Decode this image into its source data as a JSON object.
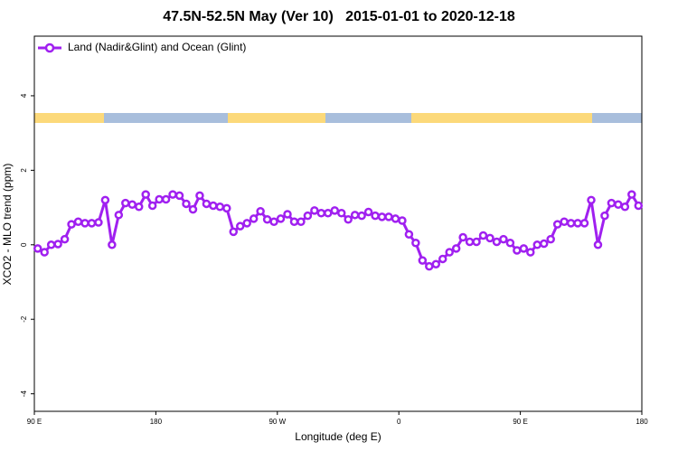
{
  "chart_data": {
    "type": "line",
    "title": "47.5N-52.5N May (Ver 10)   2015-01-01 to 2020-12-18",
    "x_label": "Longitude (deg E)",
    "y_label": "XCO2 - MLO trend (ppm)",
    "x": [
      92.5,
      97.5,
      102.5,
      107.5,
      112.5,
      117.5,
      122.5,
      127.5,
      132.5,
      137.5,
      142.5,
      147.5,
      152.5,
      157.5,
      162.5,
      167.5,
      172.5,
      177.5,
      182.5,
      187.5,
      192.5,
      197.5,
      202.5,
      207.5,
      212.5,
      217.5,
      222.5,
      227.5,
      232.5,
      237.5,
      242.5,
      247.5,
      252.5,
      257.5,
      262.5,
      267.5,
      272.5,
      277.5,
      282.5,
      287.5,
      292.5,
      297.5,
      302.5,
      307.5,
      312.5,
      317.5,
      322.5,
      327.5,
      332.5,
      337.5,
      342.5,
      347.5,
      352.5,
      357.5,
      362.5,
      367.5,
      372.5,
      377.5,
      382.5,
      387.5,
      392.5,
      397.5,
      402.5,
      407.5,
      412.5,
      417.5,
      422.5,
      427.5,
      432.5,
      437.5,
      442.5,
      447.5,
      452.5,
      457.5,
      462.5,
      467.5,
      472.5,
      477.5,
      482.5,
      487.5,
      492.5,
      497.5,
      502.5,
      507.5,
      512.5,
      517.5,
      522.5,
      527.5,
      532.5,
      537.5
    ],
    "series": [
      {
        "name": "Land (Nadir&Glint) and Ocean (Glint)",
        "color": "#a020f0",
        "values": [
          -0.1,
          -0.2,
          0.0,
          0.02,
          0.15,
          0.55,
          0.62,
          0.58,
          0.58,
          0.6,
          1.2,
          0.0,
          0.8,
          1.12,
          1.08,
          1.02,
          1.35,
          1.05,
          1.22,
          1.22,
          1.35,
          1.32,
          1.1,
          0.95,
          1.32,
          1.1,
          1.05,
          1.02,
          0.98,
          0.35,
          0.5,
          0.58,
          0.7,
          0.9,
          0.68,
          0.62,
          0.7,
          0.82,
          0.62,
          0.62,
          0.78,
          0.92,
          0.85,
          0.85,
          0.92,
          0.85,
          0.68,
          0.8,
          0.78,
          0.88,
          0.78,
          0.75,
          0.75,
          0.7,
          0.65,
          0.28,
          0.05,
          -0.42,
          -0.58,
          -0.52,
          -0.38,
          -0.2,
          -0.1,
          0.2,
          0.08,
          0.08,
          0.25,
          0.18,
          0.08,
          0.15,
          0.05,
          -0.15,
          -0.1,
          -0.2,
          0.0,
          0.03,
          0.15,
          0.55,
          0.62,
          0.58,
          0.58,
          0.58,
          1.2,
          0.0,
          0.78,
          1.12,
          1.08,
          1.02,
          1.35,
          1.05
        ]
      }
    ],
    "xlim": [
      90,
      540
    ],
    "xticks": [
      {
        "value": 90,
        "label": "90 E"
      },
      180,
      {
        "value": 270,
        "label": "90 W"
      },
      {
        "value": 360,
        "label": "0"
      },
      {
        "value": 450,
        "label": "90 E"
      },
      {
        "value": 540,
        "label": "180"
      }
    ],
    "ylim": [
      -4.47,
      5.6
    ],
    "yticks": [
      4,
      2,
      0,
      -2,
      -4
    ],
    "legend": "top-left"
  }
}
